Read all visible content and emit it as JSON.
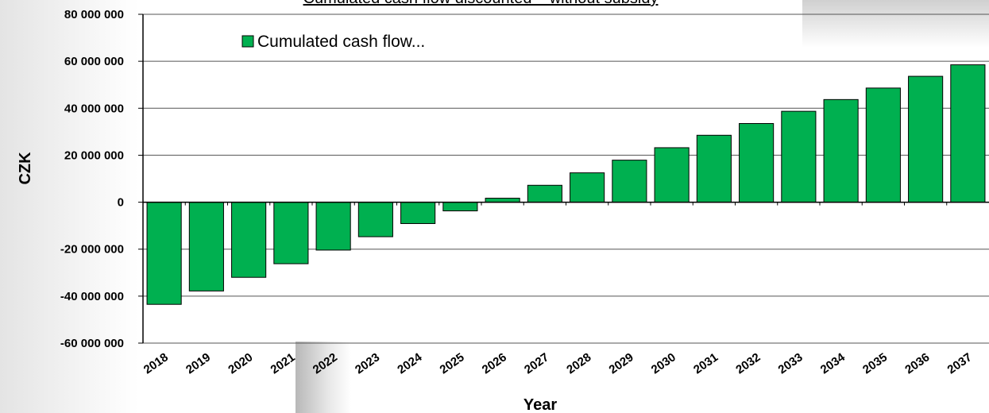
{
  "chart_data": {
    "type": "bar",
    "title": "Cumulated cash flow discounted – without subsidy",
    "xlabel": "Year",
    "ylabel": "CZK",
    "legend": [
      "Cumulated cash flow..."
    ],
    "legend_position": "top-left",
    "ylim": [
      -60000000,
      80000000
    ],
    "y_ticks": [
      80000000,
      60000000,
      40000000,
      20000000,
      0,
      -20000000,
      -40000000,
      -60000000
    ],
    "y_tick_labels": [
      "80 000 000",
      "60 000 000",
      "40 000 000",
      "20 000 000",
      "0",
      "-20 000 000",
      "-40 000 000",
      "-60 000 000"
    ],
    "grid": "horizontal",
    "bar_color": "#00b050",
    "categories": [
      "2018",
      "2019",
      "2020",
      "2021",
      "2022",
      "2023",
      "2024",
      "2025",
      "2026",
      "2027",
      "2028",
      "2029",
      "2030",
      "2031",
      "2032",
      "2033",
      "2034",
      "2035",
      "2036",
      "2037"
    ],
    "series": [
      {
        "name": "Cumulated cash flow...",
        "values": [
          -43500000,
          -37800000,
          -32000000,
          -26200000,
          -20400000,
          -14700000,
          -9100000,
          -3700000,
          1700000,
          7200000,
          12500000,
          17900000,
          23200000,
          28500000,
          33500000,
          38700000,
          43700000,
          48600000,
          53600000,
          58500000
        ]
      }
    ]
  }
}
